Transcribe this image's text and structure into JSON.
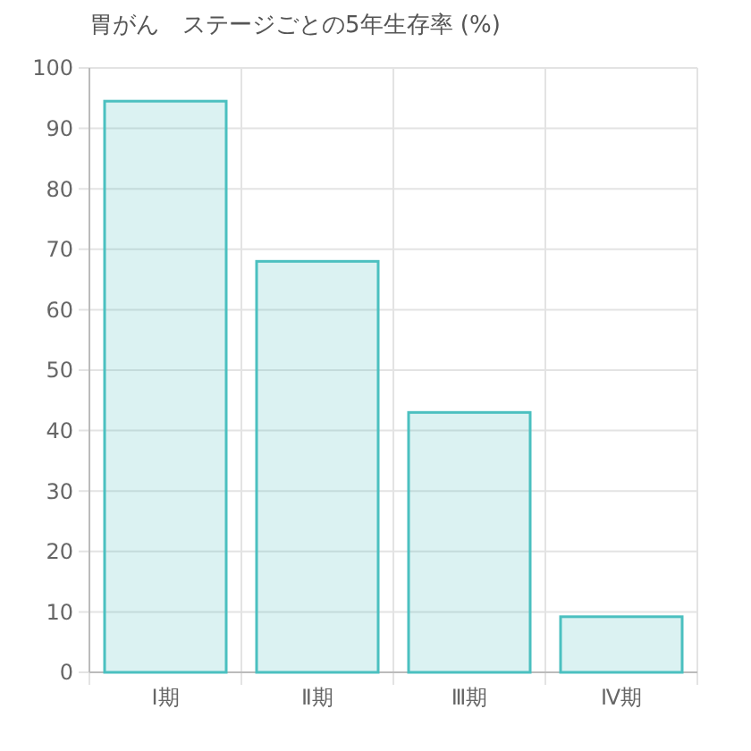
{
  "chart_data": {
    "type": "bar",
    "title": "胃がん　ステージごとの5年生存率 (%)",
    "categories": [
      "Ⅰ期",
      "Ⅱ期",
      "Ⅲ期",
      "Ⅳ期"
    ],
    "values": [
      94.5,
      68,
      43,
      9.2
    ],
    "color": "#4bc0c0",
    "ylim": [
      0,
      100
    ],
    "yticks": [
      0,
      10,
      20,
      30,
      40,
      50,
      60,
      70,
      80,
      90,
      100
    ],
    "grid": true
  }
}
